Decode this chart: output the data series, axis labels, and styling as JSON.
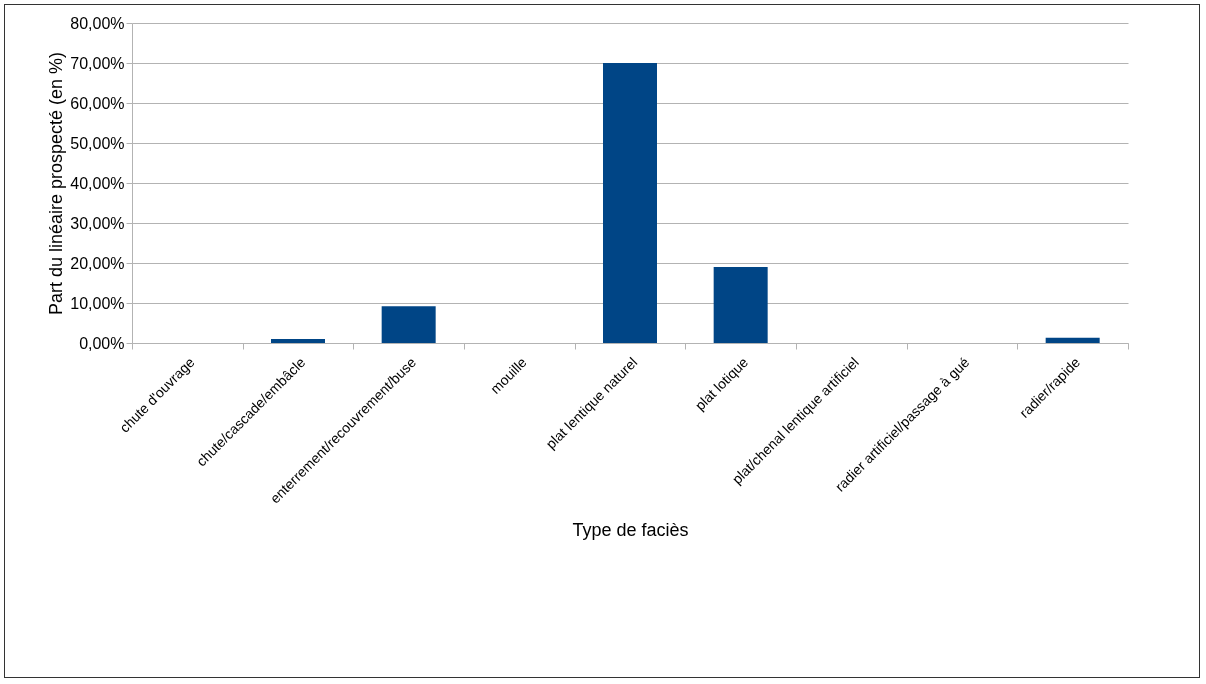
{
  "chart_data": {
    "type": "bar",
    "xlabel": "Type de faciès",
    "ylabel": "Part du linéaire prospecté (en %)",
    "categories": [
      "chute d'ouvrage",
      "chute/cascade/embâcle",
      "enterrement/recouvrement/buse",
      "mouille",
      "plat lentique naturel",
      "plat lotique",
      "plat/chenal lentique artificiel",
      "radier artificiel/passage à gué",
      "radier/rapide"
    ],
    "values": [
      0,
      1.0,
      9.2,
      0,
      70.0,
      19.0,
      0,
      0,
      1.3
    ],
    "color": "#004586",
    "ylim": [
      0,
      80
    ],
    "yticks": [
      {
        "value": 0,
        "label": "0,00%"
      },
      {
        "value": 10,
        "label": "10,00%"
      },
      {
        "value": 20,
        "label": "20,00%"
      },
      {
        "value": 30,
        "label": "30,00%"
      },
      {
        "value": 40,
        "label": "40,00%"
      },
      {
        "value": 50,
        "label": "50,00%"
      },
      {
        "value": 60,
        "label": "60,00%"
      },
      {
        "value": 70,
        "label": "70,00%"
      },
      {
        "value": 80,
        "label": "80,00%"
      }
    ],
    "grid": "y"
  }
}
